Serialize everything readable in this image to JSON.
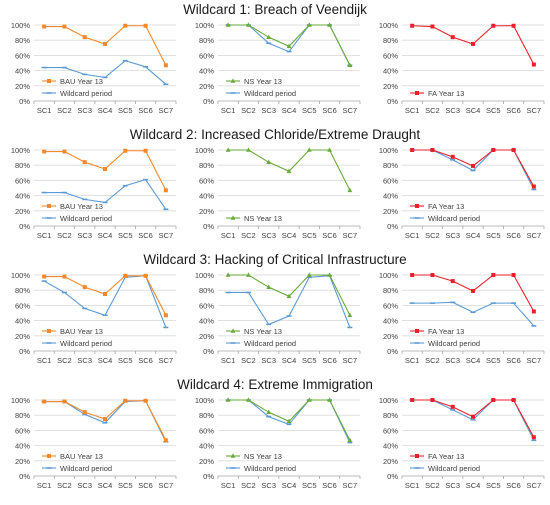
{
  "chart_data": [
    {
      "title": "Wildcard 1: Breach of Veendijk",
      "charts": [
        {
          "type": "line",
          "ylim": [
            0,
            100
          ],
          "yticks": [
            "0%",
            "20%",
            "40%",
            "60%",
            "80%",
            "100%"
          ],
          "categories": [
            "SC1",
            "SC2",
            "SC3",
            "SC4",
            "SC5",
            "SC6",
            "SC7"
          ],
          "grid": true,
          "legend_position": "lower-left",
          "series": [
            {
              "name": "BAU Year 13",
              "color": "#f5882a",
              "marker": "square",
              "values": [
                98,
                98,
                84,
                75,
                99,
                99,
                47
              ]
            },
            {
              "name": "Wildcard period",
              "color": "#5b9bd5",
              "marker": "dash",
              "values": [
                44,
                44,
                35,
                31,
                53,
                45,
                22
              ]
            }
          ]
        },
        {
          "type": "line",
          "ylim": [
            0,
            100
          ],
          "yticks": [
            "0%",
            "20%",
            "40%",
            "60%",
            "80%",
            "100%"
          ],
          "categories": [
            "SC1",
            "SC2",
            "SC3",
            "SC4",
            "SC5",
            "SC6",
            "SC7"
          ],
          "grid": true,
          "legend_position": "lower-left",
          "series": [
            {
              "name": "NS Year 13",
              "color": "#6aaa3a",
              "marker": "triangle",
              "values": [
                100,
                100,
                84,
                72,
                100,
                100,
                47
              ]
            },
            {
              "name": "Wildcard period",
              "color": "#5b9bd5",
              "marker": "dash",
              "values": [
                100,
                100,
                76,
                65,
                100,
                100,
                47
              ]
            }
          ]
        },
        {
          "type": "line",
          "ylim": [
            0,
            100
          ],
          "yticks": [
            "0%",
            "20%",
            "40%",
            "60%",
            "80%",
            "100%"
          ],
          "categories": [
            "SC1",
            "SC2",
            "SC3",
            "SC4",
            "SC5",
            "SC6",
            "SC7"
          ],
          "grid": true,
          "legend_position": "lower-left",
          "series": [
            {
              "name": "FA Year 13",
              "color": "#e8202a",
              "marker": "square",
              "values": [
                99,
                98,
                84,
                75,
                99,
                99,
                48
              ]
            }
          ]
        }
      ]
    },
    {
      "title": "Wildcard 2: Increased Chloride/Extreme Draught",
      "charts": [
        {
          "type": "line",
          "ylim": [
            0,
            100
          ],
          "yticks": [
            "0%",
            "20%",
            "40%",
            "60%",
            "80%",
            "100%"
          ],
          "categories": [
            "SC1",
            "SC2",
            "SC3",
            "SC4",
            "SC5",
            "SC6",
            "SC7"
          ],
          "grid": true,
          "legend_position": "lower-left",
          "series": [
            {
              "name": "BAU Year 13",
              "color": "#f5882a",
              "marker": "square",
              "values": [
                98,
                98,
                84,
                75,
                99,
                99,
                47
              ]
            },
            {
              "name": "Wildcard period",
              "color": "#5b9bd5",
              "marker": "dash",
              "values": [
                44,
                44,
                35,
                31,
                53,
                61,
                22
              ]
            }
          ]
        },
        {
          "type": "line",
          "ylim": [
            0,
            100
          ],
          "yticks": [
            "0%",
            "20%",
            "40%",
            "60%",
            "80%",
            "100%"
          ],
          "categories": [
            "SC1",
            "SC2",
            "SC3",
            "SC4",
            "SC5",
            "SC6",
            "SC7"
          ],
          "grid": true,
          "legend_position": "lower-left",
          "series": [
            {
              "name": "NS Year 13",
              "color": "#6aaa3a",
              "marker": "triangle",
              "values": [
                100,
                100,
                84,
                72,
                100,
                100,
                47
              ]
            }
          ]
        },
        {
          "type": "line",
          "ylim": [
            0,
            100
          ],
          "yticks": [
            "0%",
            "20%",
            "40%",
            "60%",
            "80%",
            "100%"
          ],
          "categories": [
            "SC1",
            "SC2",
            "SC3",
            "SC4",
            "SC5",
            "SC6",
            "SC7"
          ],
          "grid": true,
          "legend_position": "lower-left",
          "series": [
            {
              "name": "FA Year 13",
              "color": "#e8202a",
              "marker": "square",
              "values": [
                100,
                100,
                91,
                79,
                100,
                100,
                52
              ]
            },
            {
              "name": "Wildcard period",
              "color": "#5b9bd5",
              "marker": "dash",
              "values": [
                100,
                100,
                87,
                73,
                100,
                100,
                48
              ]
            }
          ]
        }
      ]
    },
    {
      "title": "Wildcard 3: Hacking of Critical Infrastructure",
      "charts": [
        {
          "type": "line",
          "ylim": [
            0,
            100
          ],
          "yticks": [
            "0%",
            "20%",
            "40%",
            "60%",
            "80%",
            "100%"
          ],
          "categories": [
            "SC1",
            "SC2",
            "SC3",
            "SC4",
            "SC5",
            "SC6",
            "SC7"
          ],
          "grid": true,
          "legend_position": "lower-left",
          "series": [
            {
              "name": "BAU Year 13",
              "color": "#f5882a",
              "marker": "square",
              "values": [
                98,
                98,
                84,
                75,
                99,
                99,
                47
              ]
            },
            {
              "name": "Wildcard period",
              "color": "#5b9bd5",
              "marker": "dash",
              "values": [
                92,
                77,
                56,
                47,
                97,
                99,
                31
              ]
            }
          ]
        },
        {
          "type": "line",
          "ylim": [
            0,
            100
          ],
          "yticks": [
            "0%",
            "20%",
            "40%",
            "60%",
            "80%",
            "100%"
          ],
          "categories": [
            "SC1",
            "SC2",
            "SC3",
            "SC4",
            "SC5",
            "SC6",
            "SC7"
          ],
          "grid": true,
          "legend_position": "lower-left",
          "series": [
            {
              "name": "NS Year 13",
              "color": "#6aaa3a",
              "marker": "triangle",
              "values": [
                100,
                100,
                84,
                72,
                100,
                100,
                47
              ]
            },
            {
              "name": "Wildcard period",
              "color": "#5b9bd5",
              "marker": "dash",
              "values": [
                77,
                77,
                35,
                46,
                97,
                99,
                31
              ]
            }
          ]
        },
        {
          "type": "line",
          "ylim": [
            0,
            100
          ],
          "yticks": [
            "0%",
            "20%",
            "40%",
            "60%",
            "80%",
            "100%"
          ],
          "categories": [
            "SC1",
            "SC2",
            "SC3",
            "SC4",
            "SC5",
            "SC6",
            "SC7"
          ],
          "grid": true,
          "legend_position": "lower-left",
          "series": [
            {
              "name": "FA Year 13",
              "color": "#e8202a",
              "marker": "square",
              "values": [
                100,
                100,
                92,
                79,
                100,
                100,
                52
              ]
            },
            {
              "name": "Wildcard period",
              "color": "#5b9bd5",
              "marker": "dash",
              "values": [
                63,
                63,
                64,
                51,
                63,
                63,
                33
              ]
            }
          ]
        }
      ]
    },
    {
      "title": "Wildcard 4: Extreme Immigration",
      "charts": [
        {
          "type": "line",
          "ylim": [
            0,
            100
          ],
          "yticks": [
            "0%",
            "20%",
            "40%",
            "60%",
            "80%",
            "100%"
          ],
          "categories": [
            "SC1",
            "SC2",
            "SC3",
            "SC4",
            "SC5",
            "SC6",
            "SC7"
          ],
          "grid": true,
          "legend_position": "lower-left",
          "series": [
            {
              "name": "BAU Year 13",
              "color": "#f5882a",
              "marker": "square",
              "values": [
                98,
                98,
                84,
                75,
                99,
                99,
                47
              ]
            },
            {
              "name": "Wildcard period",
              "color": "#5b9bd5",
              "marker": "dash",
              "values": [
                98,
                98,
                81,
                70,
                98,
                99,
                45
              ]
            }
          ]
        },
        {
          "type": "line",
          "ylim": [
            0,
            100
          ],
          "yticks": [
            "0%",
            "20%",
            "40%",
            "60%",
            "80%",
            "100%"
          ],
          "categories": [
            "SC1",
            "SC2",
            "SC3",
            "SC4",
            "SC5",
            "SC6",
            "SC7"
          ],
          "grid": true,
          "legend_position": "lower-left",
          "series": [
            {
              "name": "NS Year 13",
              "color": "#6aaa3a",
              "marker": "triangle",
              "values": [
                100,
                100,
                84,
                72,
                100,
                100,
                47
              ]
            },
            {
              "name": "Wildcard period",
              "color": "#5b9bd5",
              "marker": "dash",
              "values": [
                100,
                100,
                78,
                68,
                100,
                100,
                44
              ]
            }
          ]
        },
        {
          "type": "line",
          "ylim": [
            0,
            100
          ],
          "yticks": [
            "0%",
            "20%",
            "40%",
            "60%",
            "80%",
            "100%"
          ],
          "categories": [
            "SC1",
            "SC2",
            "SC3",
            "SC4",
            "SC5",
            "SC6",
            "SC7"
          ],
          "grid": true,
          "legend_position": "lower-left",
          "series": [
            {
              "name": "FA Year 13",
              "color": "#e8202a",
              "marker": "square",
              "values": [
                100,
                100,
                91,
                78,
                100,
                100,
                51
              ]
            },
            {
              "name": "Wildcard period",
              "color": "#5b9bd5",
              "marker": "dash",
              "values": [
                100,
                100,
                87,
                74,
                100,
                100,
                47
              ]
            }
          ]
        }
      ]
    }
  ]
}
